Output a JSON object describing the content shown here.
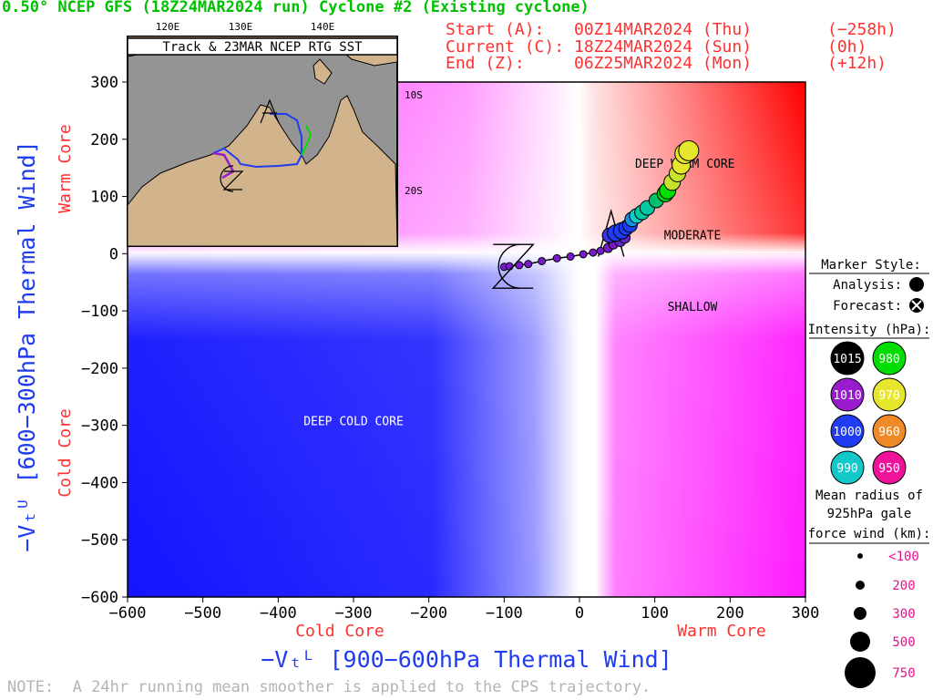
{
  "header": {
    "title": "0.50° NCEP GFS (18Z24MAR2024 run) Cyclone #2 (Existing cyclone)",
    "start_label": "Start (A):",
    "start_date": "00Z14MAR2024 (Thu)",
    "start_offset": "(−258h)",
    "current_label": "Current (C):",
    "current_date": "18Z24MAR2024 (Sun)",
    "current_offset": "(0h)",
    "end_label": "End (Z):",
    "end_date": "06Z25MAR2024 (Mon)",
    "end_offset": "(+12h)"
  },
  "inset": {
    "title": "Track & 23MAR NCEP RTG SST",
    "lon_labels": [
      "120E",
      "130E",
      "140E"
    ],
    "lat_labels": [
      "10S",
      "20S"
    ]
  },
  "legend": {
    "marker_style": "Marker Style:",
    "analysis": "Analysis:",
    "forecast": "Forecast:",
    "intensity_title": "Intensity (hPa):",
    "intensity": [
      {
        "label": "1015",
        "color": "#000000"
      },
      {
        "label": "980",
        "color": "#00dd00"
      },
      {
        "label": "1010",
        "color": "#9a1acd"
      },
      {
        "label": "970",
        "color": "#e6e62c"
      },
      {
        "label": "1000",
        "color": "#1f3cf0"
      },
      {
        "label": "960",
        "color": "#f08a28"
      },
      {
        "label": "990",
        "color": "#12c8c8"
      },
      {
        "label": "950",
        "color": "#f0129a"
      }
    ],
    "radius_title_1": "Mean radius of",
    "radius_title_2": "925hPa gale",
    "radius_title_3": "force wind (km):",
    "radius": [
      "<100",
      "200",
      "300",
      "500",
      "750"
    ]
  },
  "note": "NOTE:  A 24hr running mean smoother is applied to the CPS trajectory.",
  "chart_data": {
    "type": "scatter",
    "xlabel": "−Vₜᴸ [900−600hPa Thermal Wind]",
    "ylabel": "−Vₜᵁ [600−300hPa Thermal Wind]",
    "xlim": [
      -600,
      300
    ],
    "ylim": [
      -600,
      300
    ],
    "x_ticks": [
      -600,
      -500,
      -400,
      -300,
      -200,
      -100,
      0,
      100,
      200,
      300
    ],
    "y_ticks": [
      300,
      200,
      100,
      0,
      -100,
      -200,
      -300,
      -400,
      -500,
      -600
    ],
    "x_tick_labels": [
      "−600",
      "−500",
      "−400",
      "−300",
      "−200",
      "−100",
      "0",
      "100",
      "200",
      "300"
    ],
    "y_tick_labels": [
      "300",
      "200",
      "100",
      "0",
      "−100",
      "−200",
      "−300",
      "−400",
      "−500",
      "−600"
    ],
    "x_side_labels": {
      "left": "Cold Core",
      "right": "Warm Core"
    },
    "y_side_labels": {
      "top": "Warm Core",
      "bottom": "Cold Core"
    },
    "region_labels": [
      {
        "text": "DEEP WARM CORE",
        "x": 140,
        "y": 150
      },
      {
        "text": "MODERATE",
        "x": 150,
        "y": 25
      },
      {
        "text": "SHALLOW",
        "x": 150,
        "y": -100
      },
      {
        "text": "DEEP COLD CORE",
        "x": -300,
        "y": -300
      }
    ],
    "start_marker": {
      "x": 42,
      "y": 30
    },
    "end_marker": {
      "x": -88,
      "y": -22
    },
    "trajectory": [
      {
        "x": 145,
        "y": 180,
        "color": "#e6e62c",
        "r": 11
      },
      {
        "x": 140,
        "y": 175,
        "color": "#e6e62c",
        "r": 11
      },
      {
        "x": 135,
        "y": 155,
        "color": "#e6e62c",
        "r": 10
      },
      {
        "x": 130,
        "y": 140,
        "color": "#c8e22c",
        "r": 9
      },
      {
        "x": 123,
        "y": 125,
        "color": "#c8e22c",
        "r": 9
      },
      {
        "x": 117,
        "y": 110,
        "color": "#00dd00",
        "r": 9
      },
      {
        "x": 114,
        "y": 105,
        "color": "#00dd00",
        "r": 9
      },
      {
        "x": 102,
        "y": 93,
        "color": "#00c070",
        "r": 8
      },
      {
        "x": 90,
        "y": 80,
        "color": "#00c8a0",
        "r": 8
      },
      {
        "x": 83,
        "y": 72,
        "color": "#00c8a0",
        "r": 8
      },
      {
        "x": 76,
        "y": 66,
        "color": "#12c8c8",
        "r": 8
      },
      {
        "x": 70,
        "y": 60,
        "color": "#1290e0",
        "r": 8
      },
      {
        "x": 67,
        "y": 50,
        "color": "#1f3cf0",
        "r": 8
      },
      {
        "x": 62,
        "y": 45,
        "color": "#1f3cf0",
        "r": 8
      },
      {
        "x": 56,
        "y": 40,
        "color": "#1f3cf0",
        "r": 9
      },
      {
        "x": 48,
        "y": 36,
        "color": "#1f3cf0",
        "r": 9
      },
      {
        "x": 40,
        "y": 32,
        "color": "#3c32e0",
        "r": 8
      },
      {
        "x": 60,
        "y": 28,
        "color": "#6428c8",
        "r": 6
      },
      {
        "x": 54,
        "y": 22,
        "color": "#6428c8",
        "r": 6
      },
      {
        "x": 45,
        "y": 16,
        "color": "#7a1acd",
        "r": 5
      },
      {
        "x": 38,
        "y": 10,
        "color": "#7a1acd",
        "r": 5
      },
      {
        "x": 28,
        "y": 5,
        "color": "#7a1acd",
        "r": 4
      },
      {
        "x": 18,
        "y": 2,
        "color": "#7a1acd",
        "r": 4
      },
      {
        "x": 5,
        "y": -1,
        "color": "#7a1acd",
        "r": 4
      },
      {
        "x": -12,
        "y": -5,
        "color": "#7a1acd",
        "r": 4
      },
      {
        "x": -30,
        "y": -8,
        "color": "#7a1acd",
        "r": 4
      },
      {
        "x": -50,
        "y": -13,
        "color": "#7a1acd",
        "r": 4
      },
      {
        "x": -68,
        "y": -18,
        "color": "#7a1acd",
        "r": 4
      },
      {
        "x": -80,
        "y": -20,
        "color": "#7a1acd",
        "r": 4
      },
      {
        "x": -93,
        "y": -22,
        "color": "#7a1acd",
        "r": 4
      },
      {
        "x": -100,
        "y": -23,
        "color": "#7a1acd",
        "r": 4
      }
    ]
  }
}
